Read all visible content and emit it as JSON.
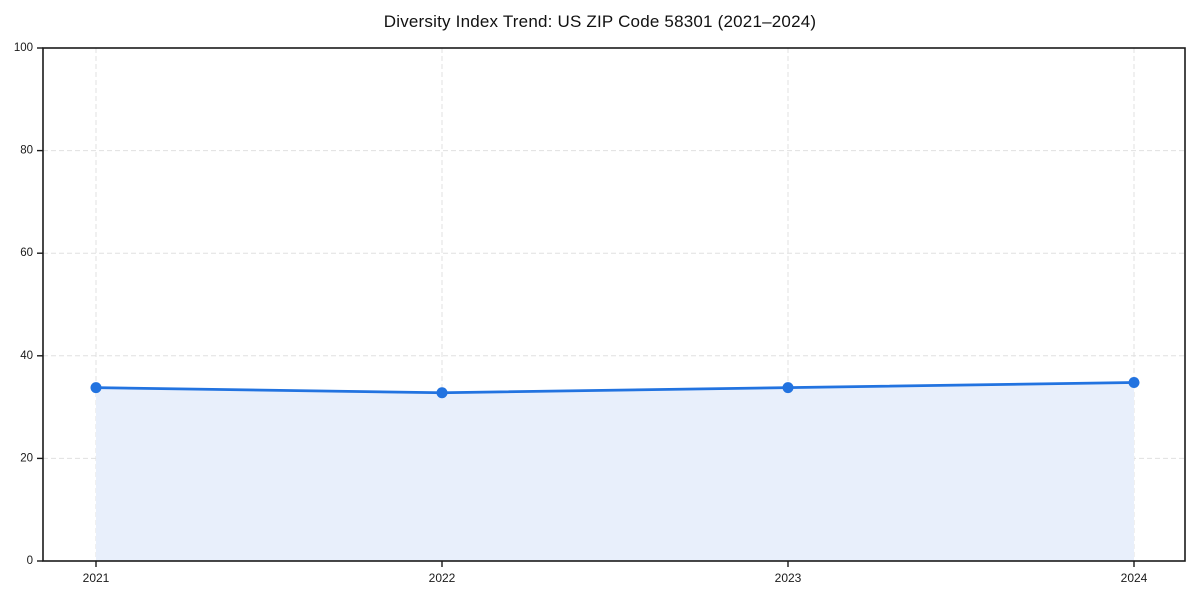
{
  "chart_data": {
    "type": "area",
    "title": "Diversity Index Trend: US ZIP Code 58301 (2021–2024)",
    "series_name": "Diversity Index",
    "x": [
      "2021",
      "2022",
      "2023",
      "2024"
    ],
    "values": [
      33.8,
      32.8,
      33.8,
      34.8
    ],
    "xlabel": "",
    "ylabel": "",
    "ylim": [
      0,
      100
    ],
    "yticks": [
      0,
      20,
      40,
      60,
      80,
      100
    ],
    "grid": "dashed-both-axes",
    "legend": "none",
    "marker": "circle",
    "colors": {
      "line": "#2273e0",
      "marker": "#2273e0",
      "area_fill": "#e8effb",
      "grid": "#e0e0e0",
      "spine": "#1a1a1a",
      "tick_text": "#1a1a1a",
      "background": "#ffffff"
    }
  }
}
